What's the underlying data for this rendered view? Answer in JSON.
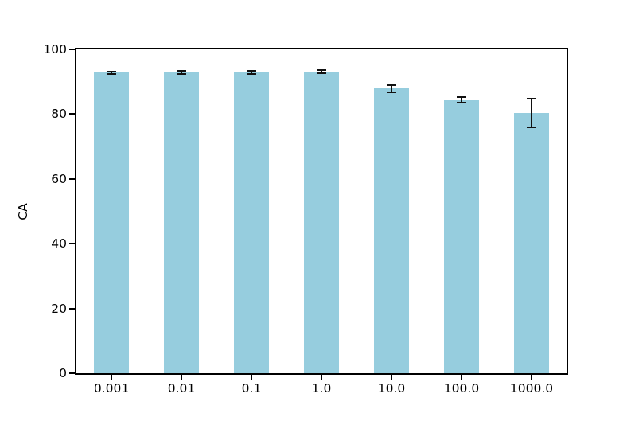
{
  "chart_data": {
    "type": "bar",
    "title": "",
    "xlabel": "",
    "ylabel": "CA",
    "categories": [
      "0.001",
      "0.01",
      "0.1",
      "1.0",
      "10.0",
      "100.0",
      "1000.0"
    ],
    "values": [
      92.8,
      92.8,
      92.9,
      93.1,
      87.9,
      84.4,
      80.4
    ],
    "errors": [
      0.3,
      0.5,
      0.4,
      0.4,
      1.1,
      0.9,
      4.4
    ],
    "ylim": [
      0,
      100
    ],
    "yticks": [
      0,
      20,
      40,
      60,
      80,
      100
    ],
    "bar_color": "#96cdde",
    "error_color": "#111111",
    "axis_color": "#000000",
    "background_color": "#ffffff",
    "grid": false,
    "legend_position": "none"
  }
}
